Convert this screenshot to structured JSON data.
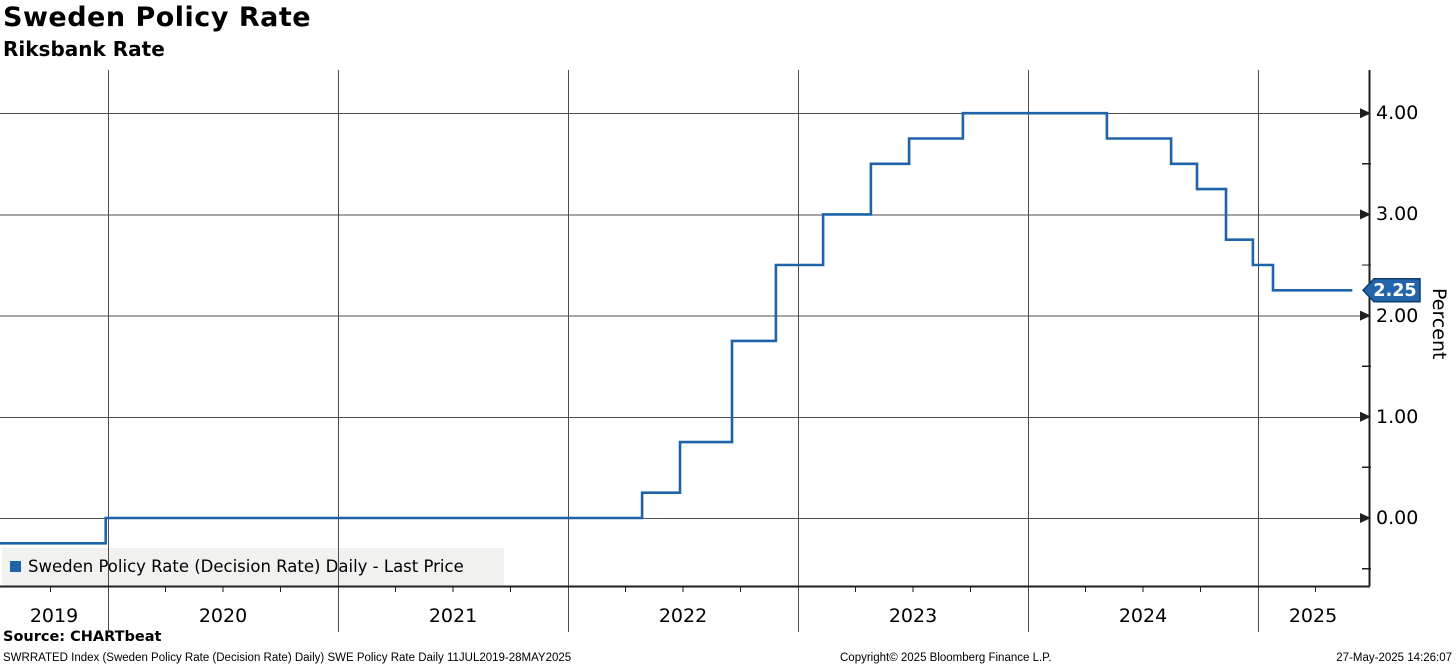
{
  "header": {
    "title": "Sweden Policy Rate",
    "subtitle": "Riksbank Rate"
  },
  "legend": {
    "label": "Sweden Policy Rate (Decision Rate) Daily - Last Price"
  },
  "y_axis": {
    "label": "Percent",
    "ticks": [
      "4.00",
      "3.00",
      "2.00",
      "1.00",
      "0.00"
    ],
    "tick_values": [
      4,
      3,
      2,
      1,
      0
    ],
    "minor_tick_values": [
      3.5,
      2.5,
      1.5,
      0.5,
      -0.5
    ],
    "last_price_tag": "2.25"
  },
  "x_axis": {
    "ticks": [
      "2019",
      "2020",
      "2021",
      "2022",
      "2023",
      "2024",
      "2025"
    ]
  },
  "footer": {
    "source": "Source: CHARTbeat",
    "description": "SWRRATED Index (Sweden Policy Rate (Decision Rate) Daily) SWE Policy Rate  Daily 11JUL2019-28MAY2025",
    "copyright": "Copyright© 2025 Bloomberg Finance L.P.",
    "timestamp": "27-May-2025 14:26:07"
  },
  "colors": {
    "line": "#1f63a8",
    "tag_fill": "#2265ab",
    "tag_border": "#123e6e",
    "tag_text": "#ffffff",
    "grid": "#4d4d4d",
    "axis": "#1f1f1f",
    "legend_bg": "#f1f1ef"
  },
  "chart_data": {
    "type": "line",
    "step": true,
    "title": "Sweden Policy Rate",
    "subtitle": "Riksbank Rate",
    "series_name": "Sweden Policy Rate (Decision Rate) Daily - Last Price",
    "ylabel": "Percent",
    "unit": "percent",
    "ylim": [
      -0.67,
      4.43
    ],
    "x_range_decimal_years": [
      2019.53,
      2025.5
    ],
    "x_gridline_years": [
      2020,
      2021,
      2022,
      2023,
      2024,
      2025
    ],
    "grid": true,
    "legend_position": "bottom-left",
    "steps": [
      {
        "x": 2019.53,
        "value": -0.25
      },
      {
        "x": 2019.99,
        "value": 0.0
      },
      {
        "x": 2022.322,
        "value": 0.25
      },
      {
        "x": 2022.487,
        "value": 0.75
      },
      {
        "x": 2022.713,
        "value": 1.75
      },
      {
        "x": 2022.904,
        "value": 2.5
      },
      {
        "x": 2023.109,
        "value": 3.0
      },
      {
        "x": 2023.317,
        "value": 3.5
      },
      {
        "x": 2023.483,
        "value": 3.75
      },
      {
        "x": 2023.717,
        "value": 4.0
      },
      {
        "x": 2024.343,
        "value": 3.75
      },
      {
        "x": 2024.622,
        "value": 3.5
      },
      {
        "x": 2024.735,
        "value": 3.25
      },
      {
        "x": 2024.861,
        "value": 2.75
      },
      {
        "x": 2024.978,
        "value": 2.5
      },
      {
        "x": 2025.065,
        "value": 2.25
      }
    ],
    "end_x": 2025.41,
    "last_price": 2.25
  }
}
